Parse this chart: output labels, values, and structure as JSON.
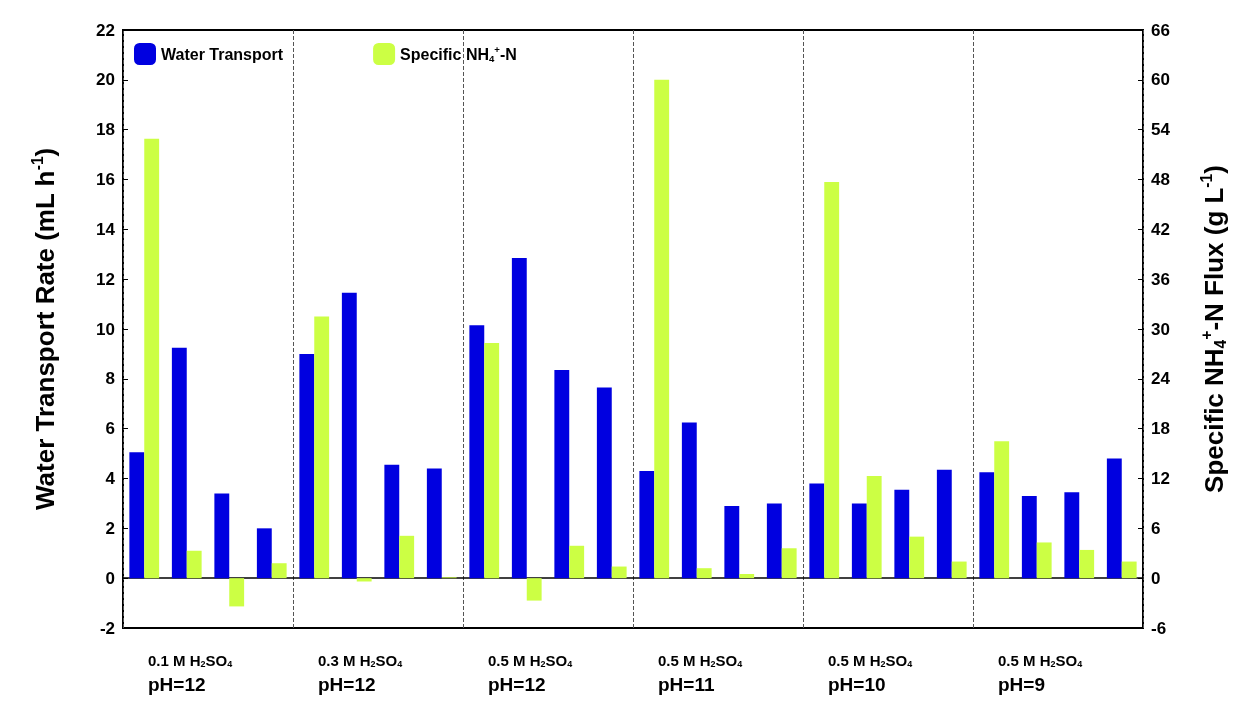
{
  "chart_data": {
    "type": "bar",
    "ylabel": "Water Transport Rate (mL h$^{-1}$)",
    "y2label": "Specific NH$_{4}$$^{+}$-N Flux (g L$^{-1}$)",
    "categories": [
      null,
      null,
      null,
      null,
      null,
      null,
      null,
      null,
      null,
      null,
      null,
      null,
      null,
      null,
      null,
      null,
      null,
      null,
      null,
      null,
      null,
      null,
      null,
      null
    ],
    "series": [
      {
        "name": "Water Transport",
        "color": "#0000e0",
        "values": [
          5.05,
          9.25,
          3.4,
          2.0,
          9.0,
          11.45,
          4.55,
          4.4,
          10.15,
          12.85,
          8.35,
          7.65,
          4.3,
          6.25,
          2.9,
          3.0,
          3.8,
          3.0,
          3.55,
          4.35,
          4.25,
          3.3,
          3.45,
          4.8
        ]
      },
      {
        "name": "Specific NH$_{4}$$^{+}$-N",
        "color": "#ccff44",
        "axis": "y2",
        "values": [
          52.9,
          3.3,
          -3.4,
          1.8,
          31.5,
          -0.4,
          5.1,
          0.1,
          28.3,
          -2.7,
          3.9,
          1.4,
          60,
          1.2,
          0.5,
          3.6,
          47.7,
          12.3,
          5.0,
          2.0,
          16.5,
          4.3,
          3.4,
          2.0
        ]
      }
    ],
    "annotations": [
      "0.1 M H$_{2}$SO$_{4}$\npH=12",
      "0.3 M H$_{2}$SO$_{4}$\npH=12",
      "0.5 M H$_{2}$SO$_{4}$\npH=12",
      "0.5 M H$_{2}$SO$_{4}$\npH=11",
      "0.5 M H$_{2}$SO$_{4}$\npH=10",
      "0.5 M H$_{2}$SO$_{4}$\npH=9"
    ],
    "ylim": [
      -2,
      22
    ],
    "yticks": [
      -2,
      0,
      2,
      4,
      6,
      8,
      10,
      12,
      14,
      16,
      18,
      20,
      22
    ],
    "y2lim": [
      -6,
      66
    ],
    "y2ticks": [
      -6,
      0,
      6,
      12,
      18,
      24,
      30,
      36,
      42,
      48,
      54,
      60,
      66
    ],
    "grid": "x",
    "legend": "top left"
  }
}
